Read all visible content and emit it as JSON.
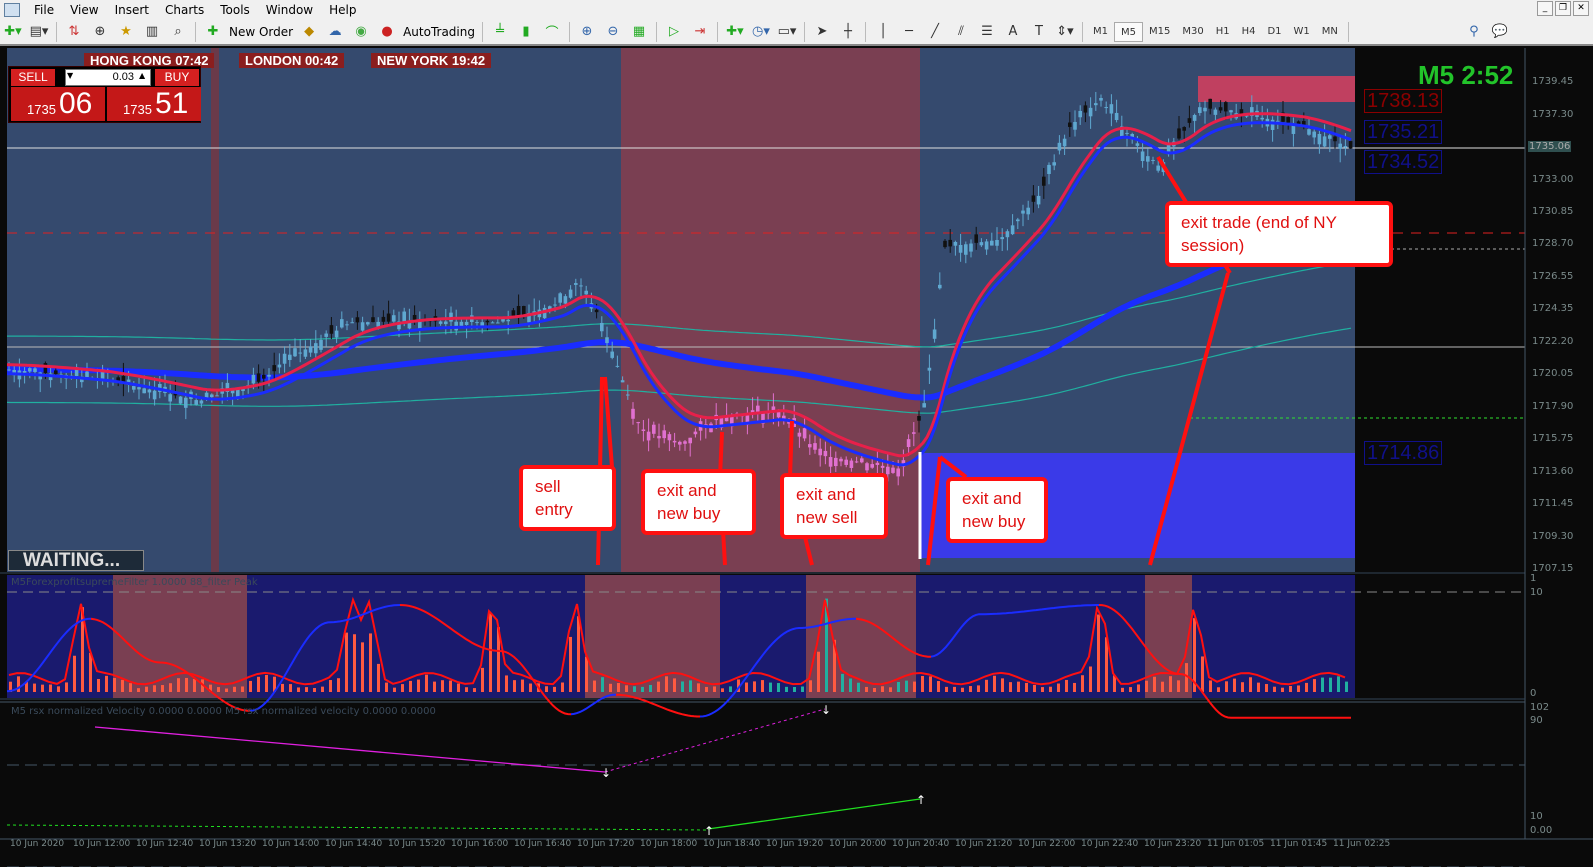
{
  "menu": [
    "File",
    "View",
    "Insert",
    "Charts",
    "Tools",
    "Window",
    "Help"
  ],
  "toolbar": {
    "new_order": "New Order",
    "autotrading": "AutoTrading",
    "timeframes": [
      "M1",
      "M5",
      "M15",
      "M30",
      "H1",
      "H4",
      "D1",
      "W1",
      "MN"
    ],
    "active_timeframe": "M5"
  },
  "sessions": [
    {
      "label": "HONG KONG 07:42"
    },
    {
      "label": "LONDON  00:42"
    },
    {
      "label": "NEW YORK  19:42"
    }
  ],
  "trade_panel": {
    "sell": "SELL",
    "buy": "BUY",
    "lot": "0.03",
    "bid_prefix": "1735",
    "bid_big": "06",
    "ask_prefix": "1735",
    "ask_big": "51"
  },
  "status": "WAITING...",
  "timer": "M5 2:52",
  "price_labels": {
    "upper": "1738.13",
    "mid1": "1735.21",
    "mid2": "1734.52",
    "lower": "1714.86",
    "current": "1735.06"
  },
  "price_axis": [
    "1739.45",
    "1737.30",
    "1733.00",
    "1730.85",
    "1728.70",
    "1726.55",
    "1724.35",
    "1722.20",
    "1720.05",
    "1717.90",
    "1715.75",
    "1713.60",
    "1711.45",
    "1709.30",
    "1707.15"
  ],
  "callouts": {
    "c1": "sell entry",
    "c2": "exit and new buy",
    "c3": "exit and new sell",
    "c4": "exit and new buy",
    "c5": "exit trade (end of NY session)"
  },
  "indicator1": {
    "label": "M5ForexprofitsupremeFilter 1.0000  88_filter  Peak",
    "axis": [
      "1",
      "10",
      "0"
    ]
  },
  "indicator2": {
    "label": "M5 rsx normalized Velocity 0.0000 0.0000  M5 rsx normalized velocity 0.0000 0.0000",
    "axis": [
      "102",
      "90",
      "10",
      "0.00"
    ]
  },
  "time_axis": [
    "10 Jun 2020",
    "10 Jun 12:00",
    "10 Jun 12:40",
    "10 Jun 13:20",
    "10 Jun 14:00",
    "10 Jun 14:40",
    "10 Jun 15:20",
    "10 Jun 16:00",
    "10 Jun 16:40",
    "10 Jun 17:20",
    "10 Jun 18:00",
    "10 Jun 18:40",
    "10 Jun 19:20",
    "10 Jun 20:00",
    "10 Jun 20:40",
    "10 Jun 21:20",
    "10 Jun 22:00",
    "10 Jun 22:40",
    "10 Jun 23:20",
    "11 Jun 01:05",
    "11 Jun 01:45",
    "11 Jun 02:25"
  ],
  "colors": {
    "chart_bg": "#354a6e",
    "session_zone": "#7a3f52",
    "buy_zone": "#3a3ae8",
    "bull": "#5fa8d0",
    "bear": "#222",
    "sell_candle": "#e070d0",
    "ma_red": "#e8204a",
    "ma_blue": "#1a2cff",
    "band": "#20b0a0",
    "timer": "#22c42a"
  }
}
